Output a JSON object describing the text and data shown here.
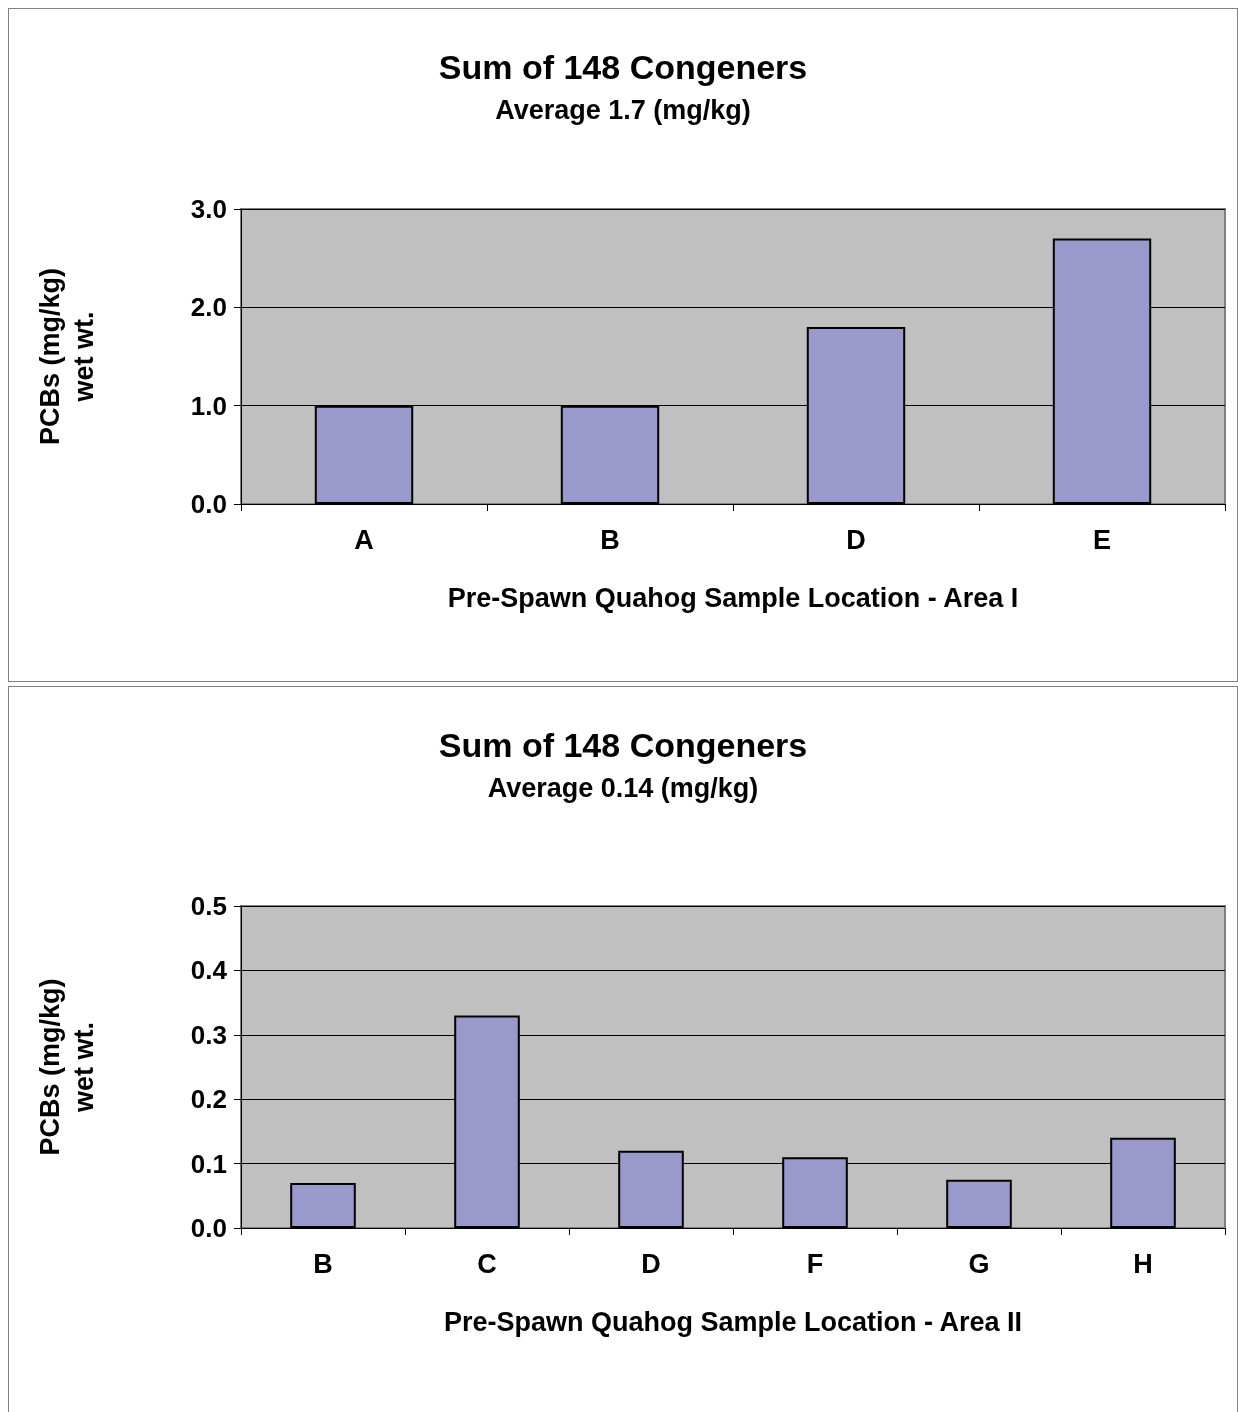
{
  "chart_data": [
    {
      "type": "bar",
      "title": "Sum of 148 Congeners",
      "subtitle": "Average 1.7 (mg/kg)",
      "xlabel": "Pre-Spawn Quahog Sample Location - Area I",
      "ylabel": "PCBs (mg/kg)\nwet wt.",
      "categories": [
        "A",
        "B",
        "D",
        "E"
      ],
      "values": [
        1.0,
        1.0,
        1.8,
        2.7
      ],
      "color": "#9999cc",
      "ylim": [
        0,
        3
      ],
      "yticks": [
        {
          "value": 0,
          "label": "0.0"
        },
        {
          "value": 1,
          "label": "1.0"
        },
        {
          "value": 2,
          "label": "2.0"
        },
        {
          "value": 3,
          "label": "3.0"
        }
      ],
      "grid": "y"
    },
    {
      "type": "bar",
      "title": "Sum of 148 Congeners",
      "subtitle": "Average 0.14 (mg/kg)",
      "xlabel": "Pre-Spawn Quahog Sample Location - Area II",
      "ylabel": "PCBs (mg/kg)\nwet wt.",
      "categories": [
        "B",
        "C",
        "D",
        "F",
        "G",
        "H"
      ],
      "values": [
        0.07,
        0.33,
        0.12,
        0.11,
        0.075,
        0.14
      ],
      "color": "#9999cc",
      "ylim": [
        0,
        0.5
      ],
      "yticks": [
        {
          "value": 0,
          "label": "0.0"
        },
        {
          "value": 0.1,
          "label": "0.1"
        },
        {
          "value": 0.2,
          "label": "0.2"
        },
        {
          "value": 0.3,
          "label": "0.3"
        },
        {
          "value": 0.4,
          "label": "0.4"
        },
        {
          "value": 0.5,
          "label": "0.5"
        }
      ],
      "grid": "y"
    }
  ]
}
